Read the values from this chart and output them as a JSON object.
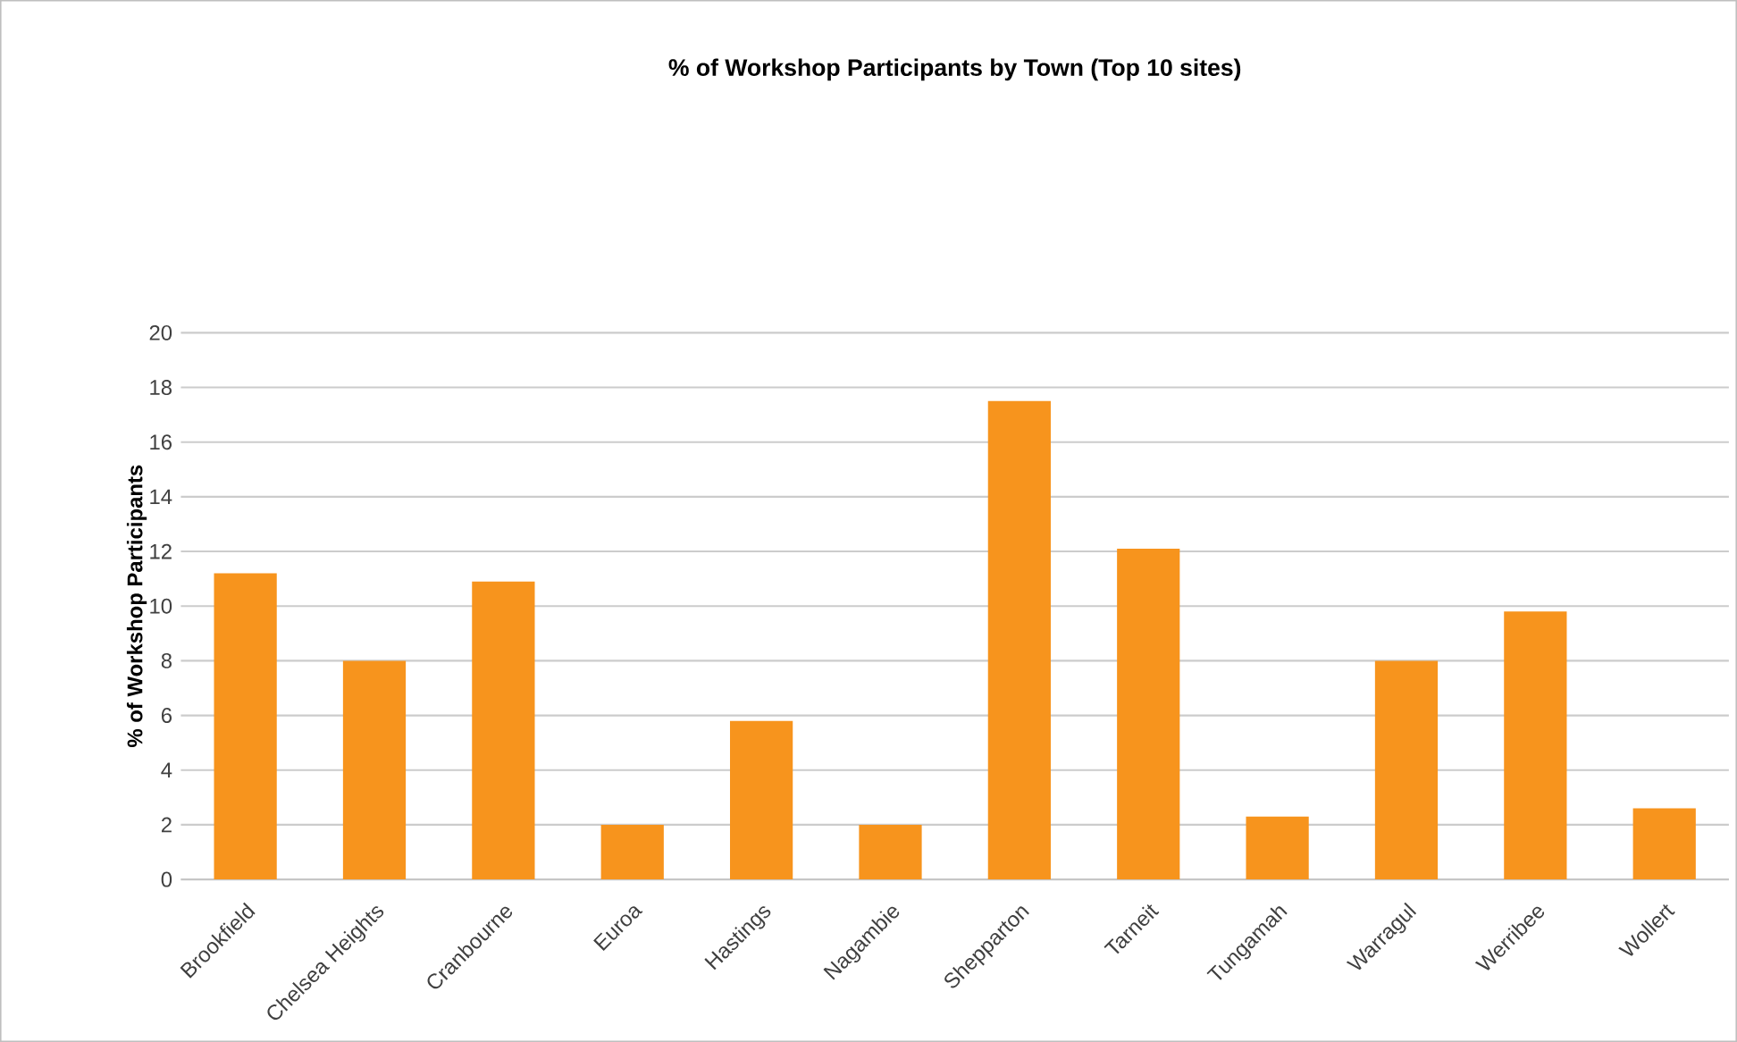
{
  "chart_data": {
    "type": "bar",
    "title": "% of Workshop Participants by Town (Top 10 sites)",
    "ylabel": "% of Workshop Participants",
    "categories": [
      "Brookfield",
      "Chelsea Heights",
      "Cranbourne",
      "Euroa",
      "Hastings",
      "Nagambie",
      "Shepparton",
      "Tarneit",
      "Tungamah",
      "Warragul",
      "Werribee",
      "Wollert"
    ],
    "values": [
      11.2,
      8.0,
      10.9,
      2.0,
      5.8,
      2.0,
      17.5,
      12.1,
      2.3,
      8.0,
      9.8,
      2.6
    ],
    "color": "#f7941d",
    "ylim": [
      0,
      20
    ],
    "yticks": [
      0,
      2,
      4,
      6,
      8,
      10,
      12,
      14,
      16,
      18,
      20
    ],
    "grid": "y"
  }
}
